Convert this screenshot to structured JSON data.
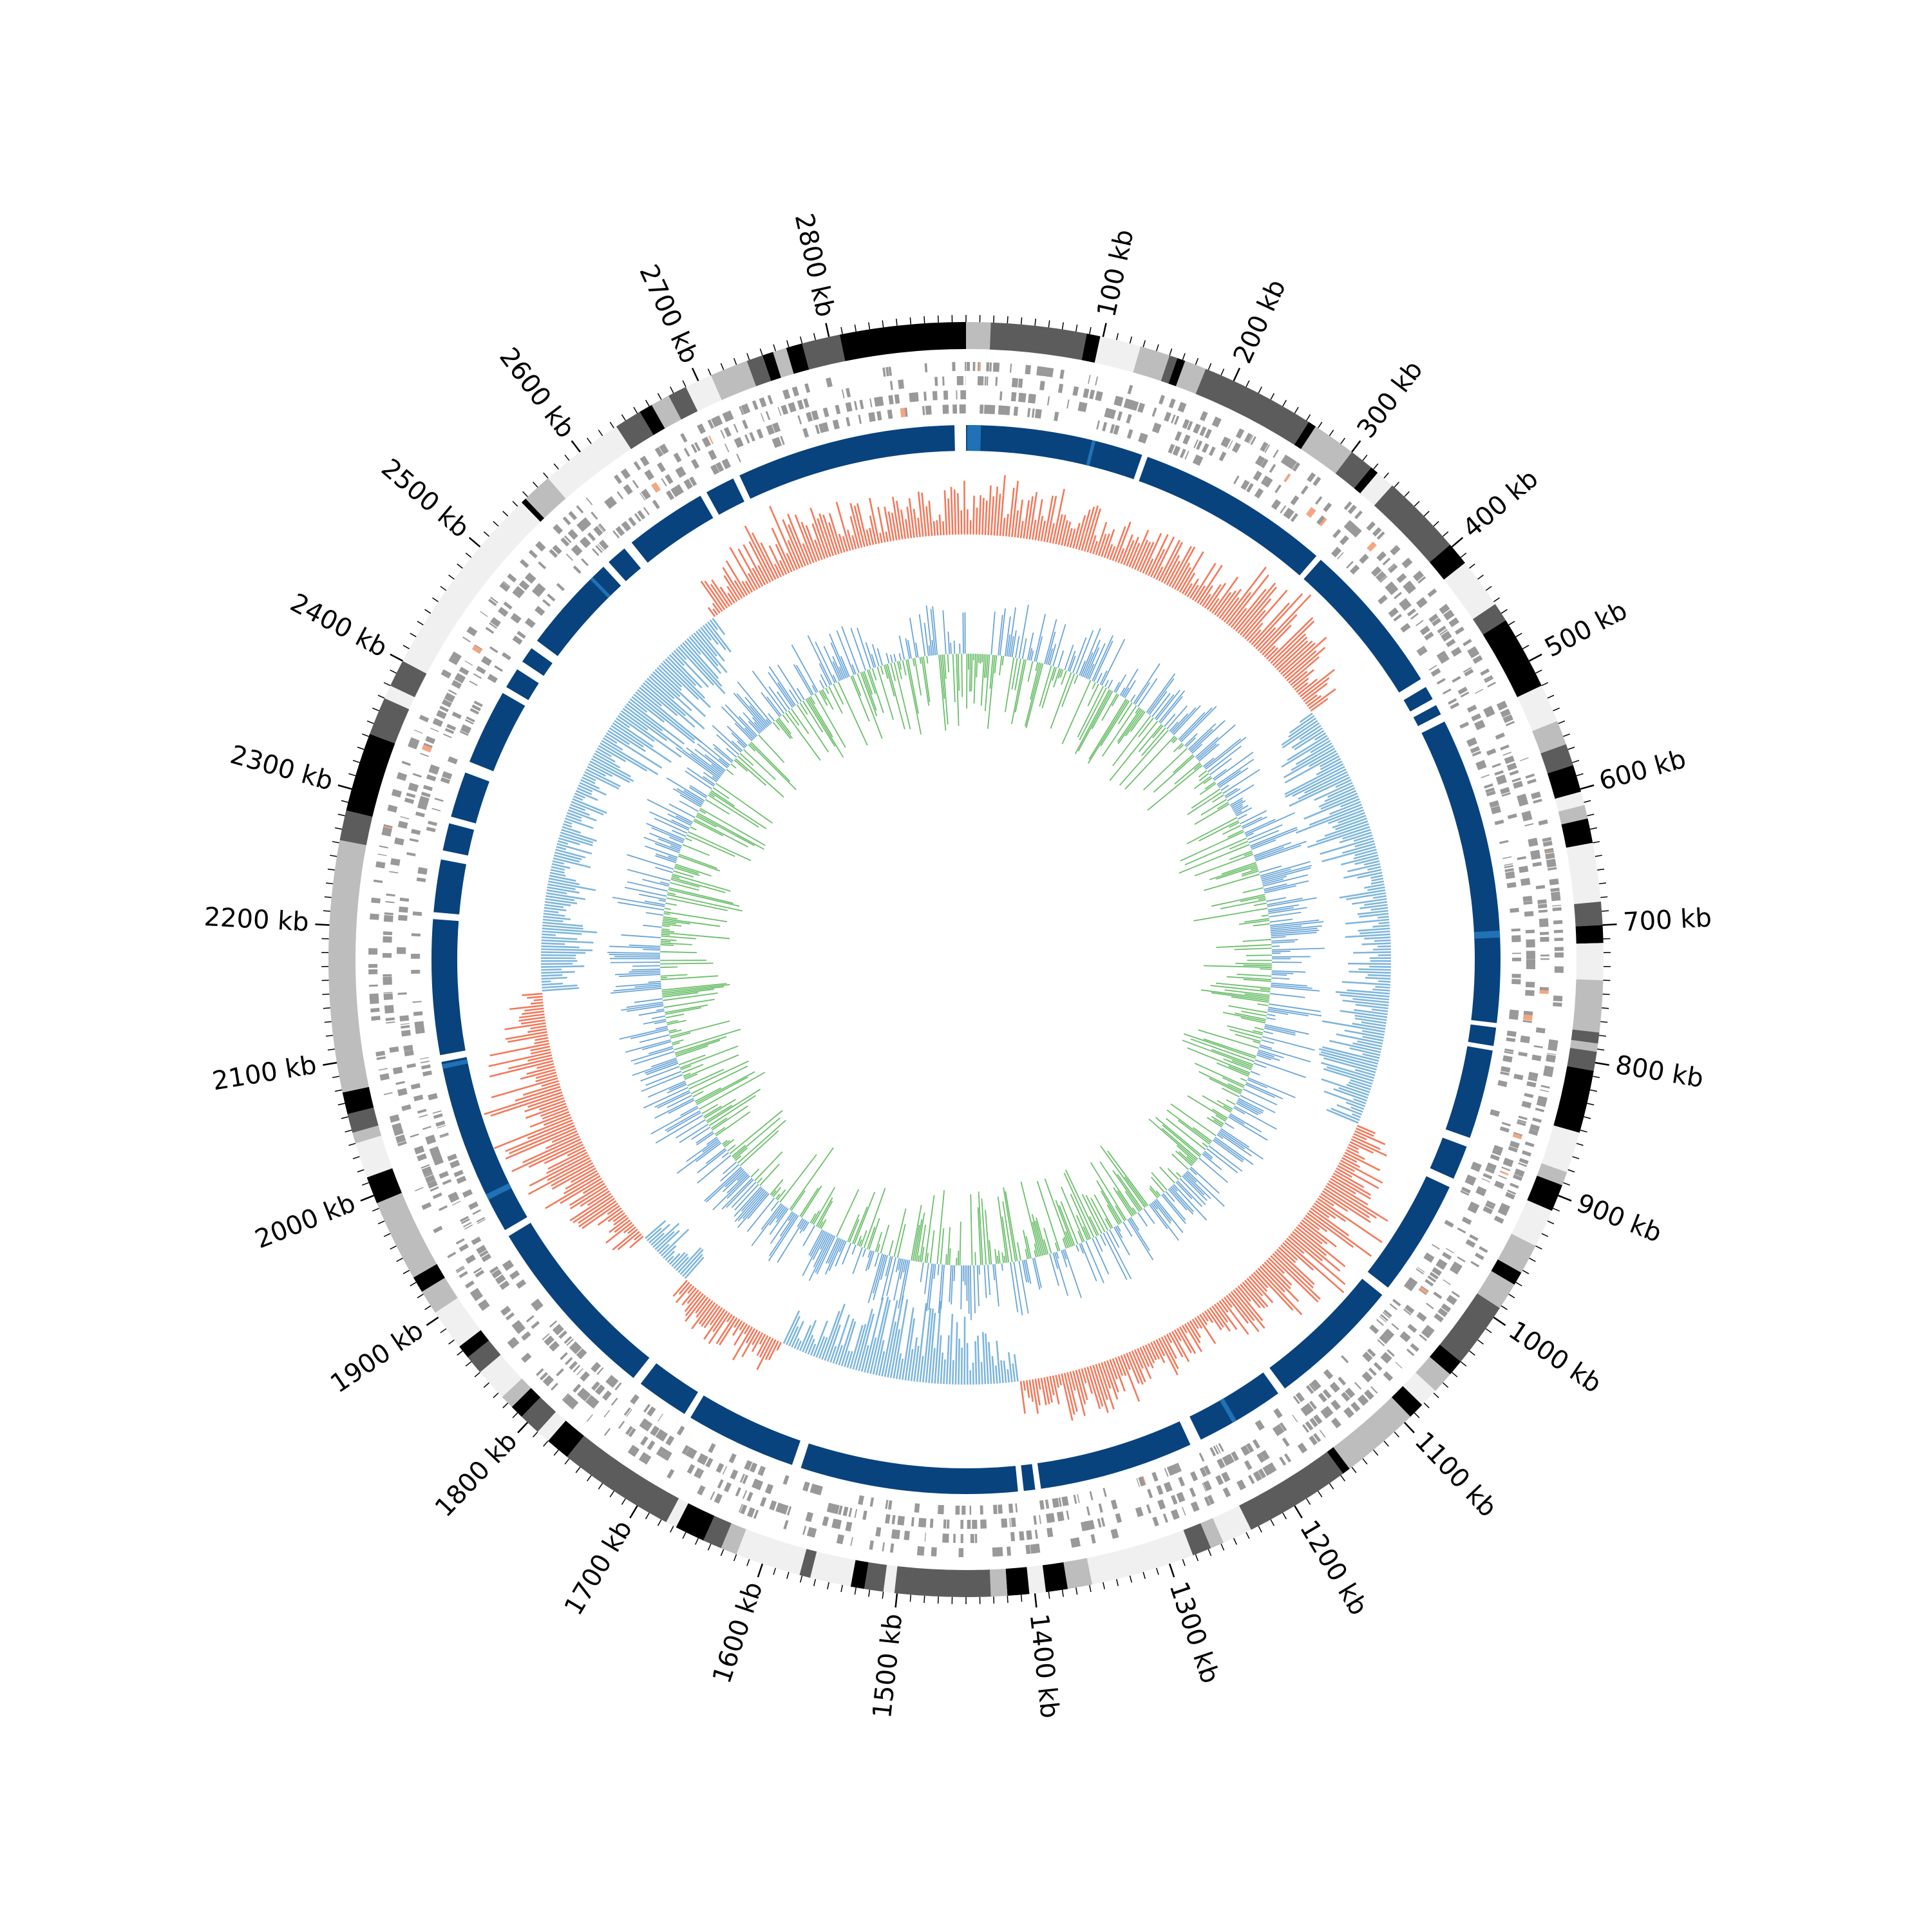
{
  "genome": {
    "length_kb": 2900,
    "tick_labels": [
      "100 kb",
      "200 kb",
      "300 kb",
      "400 kb",
      "500 kb",
      "600 kb",
      "700 kb",
      "800 kb",
      "900 kb",
      "1000 kb",
      "1100 kb",
      "1200 kb",
      "1300 kb",
      "1400 kb",
      "1500 kb",
      "1600 kb",
      "1700 kb",
      "1800 kb",
      "1900 kb",
      "2000 kb",
      "2100 kb",
      "2200 kb",
      "2300 kb",
      "2400 kb",
      "2500 kb",
      "2600 kb",
      "2700 kb",
      "2800 kb"
    ],
    "tick_positions_kb": [
      100,
      200,
      300,
      400,
      500,
      600,
      700,
      800,
      900,
      1000,
      1100,
      1200,
      1300,
      1400,
      1500,
      1600,
      1700,
      1800,
      1900,
      2000,
      2100,
      2200,
      2300,
      2400,
      2500,
      2600,
      2700,
      2800
    ]
  },
  "tracks": {
    "ideogram": {
      "bands": [
        {
          "start": 0,
          "end": 18,
          "shade": "#bdbdbd"
        },
        {
          "start": 18,
          "end": 88,
          "shade": "#5c5c5c"
        },
        {
          "start": 88,
          "end": 98,
          "shade": "#000000"
        },
        {
          "start": 98,
          "end": 128,
          "shade": "#f0f0f0"
        },
        {
          "start": 128,
          "end": 150,
          "shade": "#bdbdbd"
        },
        {
          "start": 150,
          "end": 156,
          "shade": "#5c5c5c"
        },
        {
          "start": 156,
          "end": 162,
          "shade": "#000000"
        },
        {
          "start": 162,
          "end": 178,
          "shade": "#bdbdbd"
        },
        {
          "start": 178,
          "end": 262,
          "shade": "#5c5c5c"
        },
        {
          "start": 262,
          "end": 268,
          "shade": "#000000"
        },
        {
          "start": 268,
          "end": 300,
          "shade": "#bdbdbd"
        },
        {
          "start": 300,
          "end": 318,
          "shade": "#5c5c5c"
        },
        {
          "start": 318,
          "end": 324,
          "shade": "#000000"
        },
        {
          "start": 324,
          "end": 338,
          "shade": "#f0f0f0"
        },
        {
          "start": 338,
          "end": 398,
          "shade": "#5c5c5c"
        },
        {
          "start": 398,
          "end": 415,
          "shade": "#000000"
        },
        {
          "start": 415,
          "end": 452,
          "shade": "#f0f0f0"
        },
        {
          "start": 452,
          "end": 466,
          "shade": "#5c5c5c"
        },
        {
          "start": 466,
          "end": 520,
          "shade": "#000000"
        },
        {
          "start": 520,
          "end": 548,
          "shade": "#f0f0f0"
        },
        {
          "start": 548,
          "end": 566,
          "shade": "#bdbdbd"
        },
        {
          "start": 566,
          "end": 582,
          "shade": "#5c5c5c"
        },
        {
          "start": 582,
          "end": 602,
          "shade": "#000000"
        },
        {
          "start": 602,
          "end": 612,
          "shade": "#f0f0f0"
        },
        {
          "start": 612,
          "end": 622,
          "shade": "#bdbdbd"
        },
        {
          "start": 622,
          "end": 640,
          "shade": "#000000"
        },
        {
          "start": 640,
          "end": 683,
          "shade": "#f0f0f0"
        },
        {
          "start": 683,
          "end": 700,
          "shade": "#5c5c5c"
        },
        {
          "start": 700,
          "end": 713,
          "shade": "#000000"
        },
        {
          "start": 713,
          "end": 740,
          "shade": "#f0f0f0"
        },
        {
          "start": 740,
          "end": 778,
          "shade": "#bdbdbd"
        },
        {
          "start": 778,
          "end": 786,
          "shade": "#5c5c5c"
        },
        {
          "start": 786,
          "end": 792,
          "shade": "#bdbdbd"
        },
        {
          "start": 792,
          "end": 806,
          "shade": "#5c5c5c"
        },
        {
          "start": 806,
          "end": 852,
          "shade": "#000000"
        },
        {
          "start": 852,
          "end": 882,
          "shade": "#f0f0f0"
        },
        {
          "start": 882,
          "end": 892,
          "shade": "#bdbdbd"
        },
        {
          "start": 892,
          "end": 912,
          "shade": "#000000"
        },
        {
          "start": 912,
          "end": 940,
          "shade": "#f0f0f0"
        },
        {
          "start": 940,
          "end": 962,
          "shade": "#bdbdbd"
        },
        {
          "start": 962,
          "end": 972,
          "shade": "#000000"
        },
        {
          "start": 972,
          "end": 992,
          "shade": "#bdbdbd"
        },
        {
          "start": 992,
          "end": 1040,
          "shade": "#5c5c5c"
        },
        {
          "start": 1040,
          "end": 1052,
          "shade": "#000000"
        },
        {
          "start": 1052,
          "end": 1068,
          "shade": "#bdbdbd"
        },
        {
          "start": 1068,
          "end": 1082,
          "shade": "#f0f0f0"
        },
        {
          "start": 1082,
          "end": 1094,
          "shade": "#000000"
        },
        {
          "start": 1094,
          "end": 1152,
          "shade": "#bdbdbd"
        },
        {
          "start": 1152,
          "end": 1158,
          "shade": "#000000"
        },
        {
          "start": 1158,
          "end": 1236,
          "shade": "#5c5c5c"
        },
        {
          "start": 1236,
          "end": 1258,
          "shade": "#f0f0f0"
        },
        {
          "start": 1258,
          "end": 1268,
          "shade": "#bdbdbd"
        },
        {
          "start": 1268,
          "end": 1282,
          "shade": "#5c5c5c"
        },
        {
          "start": 1282,
          "end": 1358,
          "shade": "#f0f0f0"
        },
        {
          "start": 1358,
          "end": 1376,
          "shade": "#bdbdbd"
        },
        {
          "start": 1376,
          "end": 1392,
          "shade": "#000000"
        },
        {
          "start": 1392,
          "end": 1404,
          "shade": "#f0f0f0"
        },
        {
          "start": 1404,
          "end": 1420,
          "shade": "#000000"
        },
        {
          "start": 1420,
          "end": 1432,
          "shade": "#bdbdbd"
        },
        {
          "start": 1432,
          "end": 1502,
          "shade": "#5c5c5c"
        },
        {
          "start": 1502,
          "end": 1510,
          "shade": "#f0f0f0"
        },
        {
          "start": 1510,
          "end": 1524,
          "shade": "#5c5c5c"
        },
        {
          "start": 1524,
          "end": 1534,
          "shade": "#000000"
        },
        {
          "start": 1534,
          "end": 1564,
          "shade": "#f0f0f0"
        },
        {
          "start": 1564,
          "end": 1572,
          "shade": "#5c5c5c"
        },
        {
          "start": 1572,
          "end": 1620,
          "shade": "#f0f0f0"
        },
        {
          "start": 1620,
          "end": 1632,
          "shade": "#bdbdbd"
        },
        {
          "start": 1632,
          "end": 1646,
          "shade": "#5c5c5c"
        },
        {
          "start": 1646,
          "end": 1668,
          "shade": "#000000"
        },
        {
          "start": 1668,
          "end": 1676,
          "shade": "#f0f0f0"
        },
        {
          "start": 1676,
          "end": 1762,
          "shade": "#5c5c5c"
        },
        {
          "start": 1762,
          "end": 1780,
          "shade": "#000000"
        },
        {
          "start": 1780,
          "end": 1790,
          "shade": "#f0f0f0"
        },
        {
          "start": 1790,
          "end": 1806,
          "shade": "#5c5c5c"
        },
        {
          "start": 1806,
          "end": 1816,
          "shade": "#000000"
        },
        {
          "start": 1816,
          "end": 1826,
          "shade": "#bdbdbd"
        },
        {
          "start": 1826,
          "end": 1850,
          "shade": "#f0f0f0"
        },
        {
          "start": 1850,
          "end": 1864,
          "shade": "#5c5c5c"
        },
        {
          "start": 1864,
          "end": 1874,
          "shade": "#000000"
        },
        {
          "start": 1874,
          "end": 1904,
          "shade": "#f0f0f0"
        },
        {
          "start": 1904,
          "end": 1922,
          "shade": "#bdbdbd"
        },
        {
          "start": 1922,
          "end": 1934,
          "shade": "#000000"
        },
        {
          "start": 1934,
          "end": 1994,
          "shade": "#bdbdbd"
        },
        {
          "start": 1994,
          "end": 2014,
          "shade": "#000000"
        },
        {
          "start": 2014,
          "end": 2040,
          "shade": "#f0f0f0"
        },
        {
          "start": 2040,
          "end": 2048,
          "shade": "#bdbdbd"
        },
        {
          "start": 2048,
          "end": 2062,
          "shade": "#5c5c5c"
        },
        {
          "start": 2062,
          "end": 2078,
          "shade": "#000000"
        },
        {
          "start": 2078,
          "end": 2262,
          "shade": "#bdbdbd"
        },
        {
          "start": 2262,
          "end": 2284,
          "shade": "#5c5c5c"
        },
        {
          "start": 2284,
          "end": 2342,
          "shade": "#000000"
        },
        {
          "start": 2342,
          "end": 2370,
          "shade": "#5c5c5c"
        },
        {
          "start": 2370,
          "end": 2380,
          "shade": "#f0f0f0"
        },
        {
          "start": 2380,
          "end": 2400,
          "shade": "#5c5c5c"
        },
        {
          "start": 2400,
          "end": 2544,
          "shade": "#f0f0f0"
        },
        {
          "start": 2544,
          "end": 2548,
          "shade": "#000000"
        },
        {
          "start": 2548,
          "end": 2570,
          "shade": "#bdbdbd"
        },
        {
          "start": 2570,
          "end": 2632,
          "shade": "#f0f0f0"
        },
        {
          "start": 2632,
          "end": 2652,
          "shade": "#5c5c5c"
        },
        {
          "start": 2652,
          "end": 2662,
          "shade": "#000000"
        },
        {
          "start": 2662,
          "end": 2676,
          "shade": "#bdbdbd"
        },
        {
          "start": 2676,
          "end": 2690,
          "shade": "#5c5c5c"
        },
        {
          "start": 2690,
          "end": 2710,
          "shade": "#f0f0f0"
        },
        {
          "start": 2710,
          "end": 2738,
          "shade": "#bdbdbd"
        },
        {
          "start": 2738,
          "end": 2750,
          "shade": "#5c5c5c"
        },
        {
          "start": 2750,
          "end": 2758,
          "shade": "#000000"
        },
        {
          "start": 2758,
          "end": 2768,
          "shade": "#bdbdbd"
        },
        {
          "start": 2768,
          "end": 2780,
          "shade": "#000000"
        },
        {
          "start": 2780,
          "end": 2808,
          "shade": "#5c5c5c"
        },
        {
          "start": 2808,
          "end": 2900,
          "shade": "#000000"
        }
      ]
    },
    "features": {
      "color": "#999999",
      "highlight_color": "#f4a582",
      "count": 1600
    },
    "contigs": {
      "color": "#08437e",
      "accent_color": "#2171b5",
      "segments": [
        [
          0,
          155
        ],
        [
          160,
          330
        ],
        [
          335,
          470
        ],
        [
          478,
          490
        ],
        [
          496,
          505
        ],
        [
          512,
          780
        ],
        [
          784,
          800
        ],
        [
          804,
          882
        ],
        [
          890,
          920
        ],
        [
          928,
          1030
        ],
        [
          1038,
          1155
        ],
        [
          1162,
          1240
        ],
        [
          1250,
          1385
        ],
        [
          1390,
          1400
        ],
        [
          1405,
          1595
        ],
        [
          1603,
          1700
        ],
        [
          1706,
          1752
        ],
        [
          1760,
          1924
        ],
        [
          1930,
          2086
        ],
        [
          2092,
          2210
        ],
        [
          2216,
          2262
        ],
        [
          2270,
          2294
        ],
        [
          2300,
          2340
        ],
        [
          2350,
          2416
        ],
        [
          2422,
          2440
        ],
        [
          2448,
          2462
        ],
        [
          2470,
          2556
        ],
        [
          2562,
          2580
        ],
        [
          2588,
          2660
        ],
        [
          2666,
          2692
        ],
        [
          2698,
          2890
        ]
      ]
    },
    "gc_skew": {
      "positive_color": "#f4785a",
      "negative_color": "#7eb6dc",
      "bins": 900
    },
    "gc_content": {
      "positive_color": "#6bbf6b",
      "negative_color": "#6aa5d6",
      "bins": 1100
    }
  }
}
